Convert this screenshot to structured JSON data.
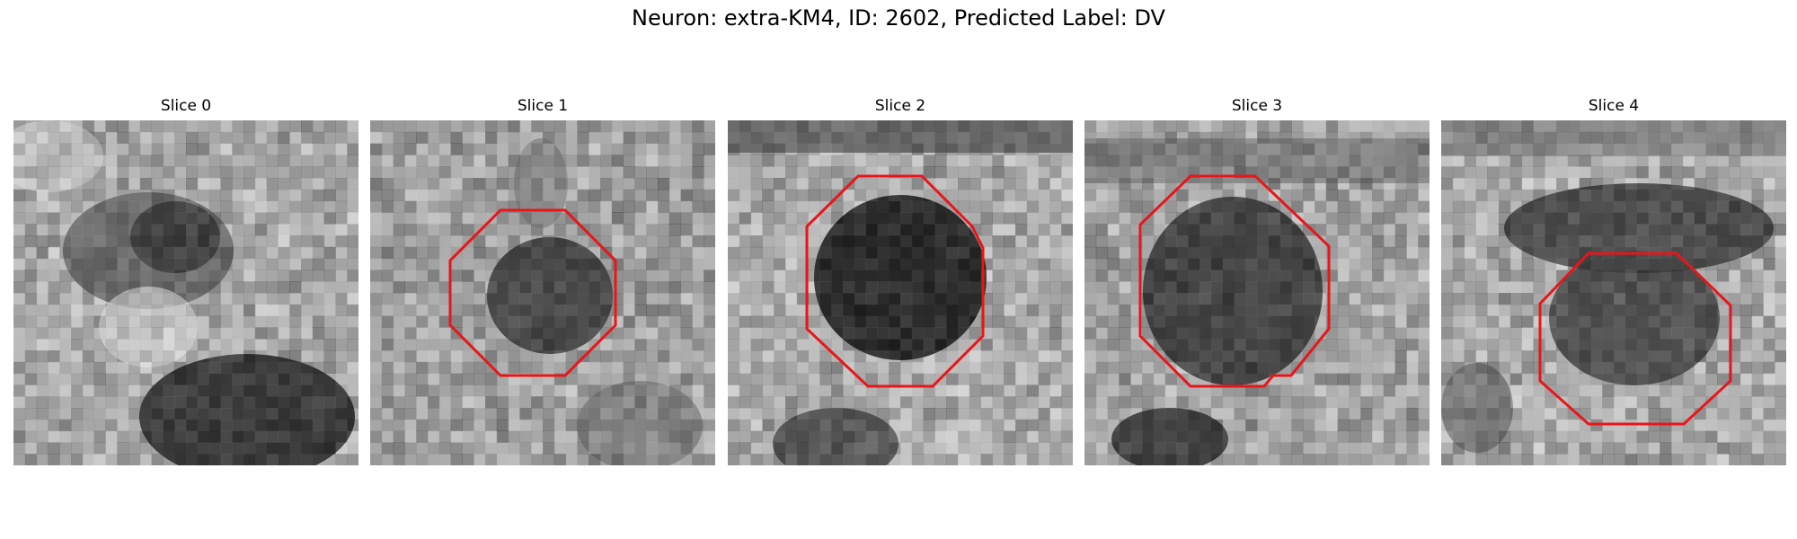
{
  "figure": {
    "title": "Neuron: extra-KM4, ID: 2602, Predicted Label: DV"
  },
  "colors": {
    "contour": "#e8161b",
    "background": "#ffffff"
  },
  "panels": [
    {
      "title": "Slice 0",
      "has_contour": false
    },
    {
      "title": "Slice 1",
      "has_contour": true
    },
    {
      "title": "Slice 2",
      "has_contour": true
    },
    {
      "title": "Slice 3",
      "has_contour": true
    },
    {
      "title": "Slice 4",
      "has_contour": true
    }
  ]
}
